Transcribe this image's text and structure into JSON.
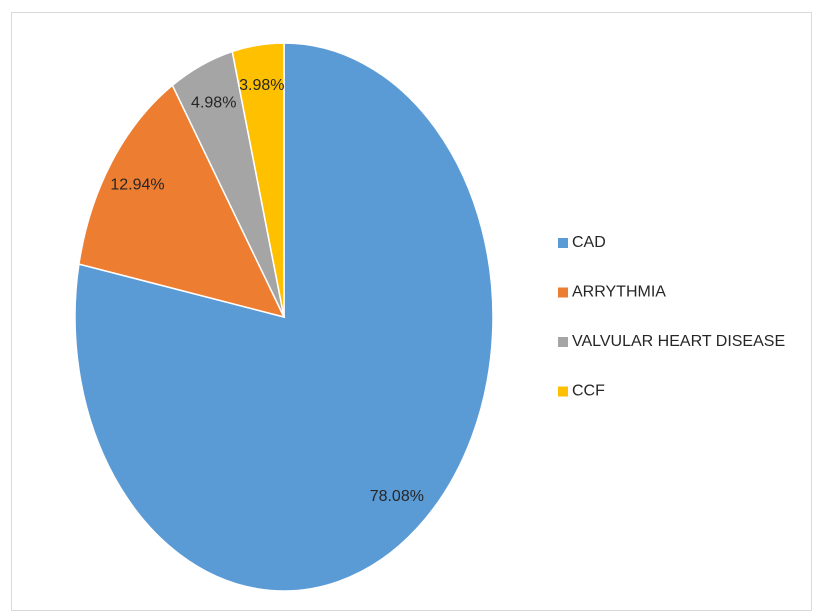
{
  "chart_data": {
    "type": "pie",
    "categories": [
      "CAD",
      "ARRYTHMIA",
      "VALVULAR HEART DISEASE",
      "CCF"
    ],
    "values": [
      78.08,
      12.94,
      4.98,
      3.98
    ],
    "value_labels": [
      "78.08%",
      "12.94%",
      "4.98%",
      "3.98%"
    ],
    "colors": [
      "#5b9bd5",
      "#ed7d31",
      "#a5a5a5",
      "#ffc000"
    ],
    "legend": "right"
  }
}
